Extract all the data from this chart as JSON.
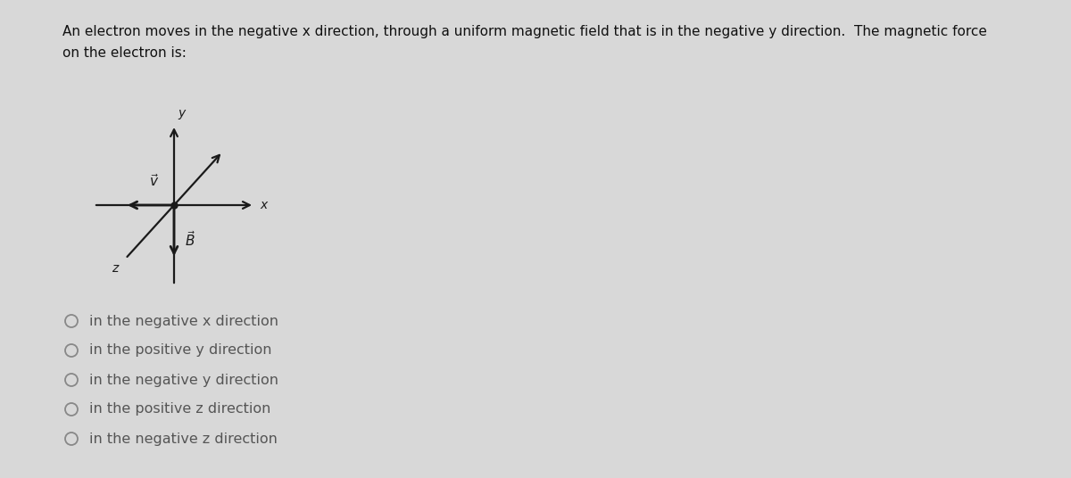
{
  "title_line1": "An electron moves in the negative x direction, through a uniform magnetic field that is in the negative y direction.  The magnetic force",
  "title_line2": "on the electron is:",
  "bg_color": "#d8d8d8",
  "options": [
    "in the negative x direction",
    "in the positive y direction",
    "in the negative y direction",
    "in the positive z direction",
    "in the negative z direction"
  ],
  "axis_color": "#1a1a1a",
  "text_color": "#555555",
  "title_color": "#111111",
  "option_circle_color": "#888888",
  "title_fontsize": 11.0,
  "option_fontsize": 11.5,
  "label_fontsize": 10
}
